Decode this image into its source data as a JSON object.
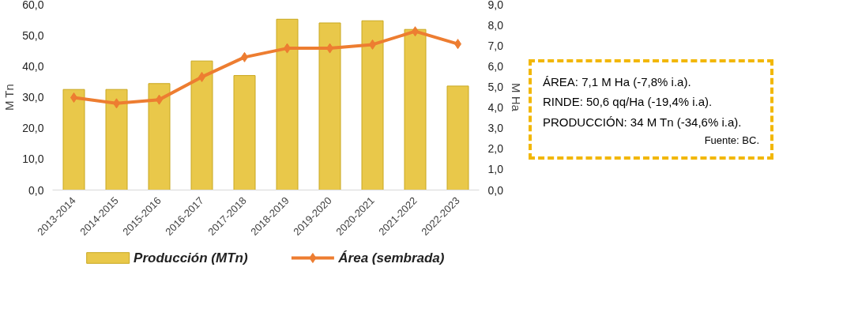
{
  "chart_data": {
    "type": "bar",
    "ylabel": "M Tn",
    "y2label": "M Ha",
    "categories": [
      "2013-2014",
      "2014-2015",
      "2015-2016",
      "2016-2017",
      "2017-2018",
      "2018-2019",
      "2019-2020",
      "2020-2021",
      "2021-2022",
      "2022-2023"
    ],
    "series": [
      {
        "name": "Producción (MTn)",
        "color": "#e9c84a",
        "values": [
          32.5,
          32.5,
          34.4,
          41.7,
          37.0,
          55.2,
          54.0,
          54.7,
          51.9,
          33.6
        ]
      },
      {
        "name": "Área (sembrada)",
        "type": "line",
        "axis": "y2",
        "color": "#ed7d31",
        "marker": "diamond",
        "values": [
          4.48,
          4.2,
          4.38,
          5.48,
          6.44,
          6.87,
          6.87,
          7.05,
          7.69,
          7.08
        ]
      }
    ],
    "ylim": [
      0,
      60
    ],
    "yticks": [
      {
        "value": 0,
        "label": "0,0"
      },
      {
        "value": 10,
        "label": "10,0"
      },
      {
        "value": 20,
        "label": "20,0"
      },
      {
        "value": 30,
        "label": "30,0"
      },
      {
        "value": 40,
        "label": "40,0"
      },
      {
        "value": 50,
        "label": "50,0"
      },
      {
        "value": 60,
        "label": "60,0"
      }
    ],
    "y2lim": [
      0,
      9
    ],
    "y2ticks": [
      {
        "value": 0,
        "label": "0,0"
      },
      {
        "value": 1,
        "label": "1,0"
      },
      {
        "value": 2,
        "label": "2,0"
      },
      {
        "value": 3,
        "label": "3,0"
      },
      {
        "value": 4,
        "label": "4,0"
      },
      {
        "value": 5,
        "label": "5,0"
      },
      {
        "value": 6,
        "label": "6,0"
      },
      {
        "value": 7,
        "label": "7,0"
      },
      {
        "value": 8,
        "label": "8,0"
      },
      {
        "value": 9,
        "label": "9,0"
      }
    ],
    "grid": false,
    "legend": "bottom",
    "annotations": [
      "ÁREA: 7,1 M Ha (-7,8% i.a).",
      "RINDE: 50,6 qq/Ha (-19,4% i.a).",
      "PRODUCCIÓN: 34 M Tn (-34,6% i.a).",
      "Fuente: BC."
    ]
  }
}
